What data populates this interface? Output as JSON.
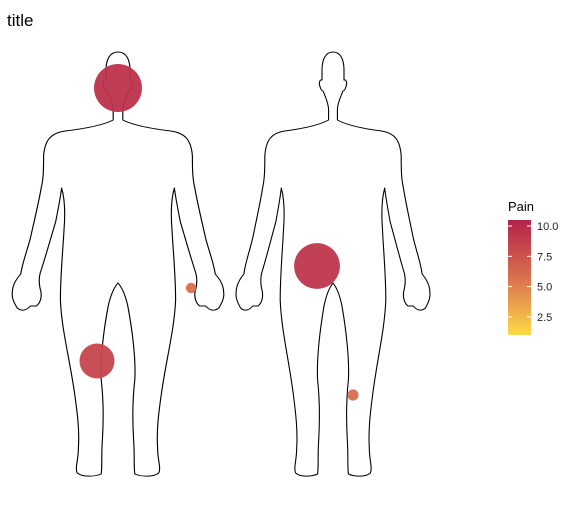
{
  "chart_data": {
    "type": "scatter",
    "title": "title",
    "legend": {
      "title": "Pain",
      "position": "right",
      "ticks": [
        2.5,
        5.0,
        7.5,
        10.0
      ],
      "tick_labels": [
        "2.5",
        "5.0",
        "7.5",
        "10.0"
      ],
      "range": [
        1,
        10.5
      ],
      "color_low": "#FDDA47",
      "color_mid": "#D9704E",
      "color_high": "#B5224C"
    },
    "views": [
      "front",
      "back"
    ],
    "points": [
      {
        "view": "front",
        "location": "head",
        "pain": 9.5
      },
      {
        "view": "front",
        "location": "left wrist",
        "pain": 5.8
      },
      {
        "view": "front",
        "location": "right thigh",
        "pain": 8.3
      },
      {
        "view": "back",
        "location": "buttock",
        "pain": 9.3
      },
      {
        "view": "back",
        "location": "calf",
        "pain": 5.9
      }
    ],
    "grid": false
  }
}
